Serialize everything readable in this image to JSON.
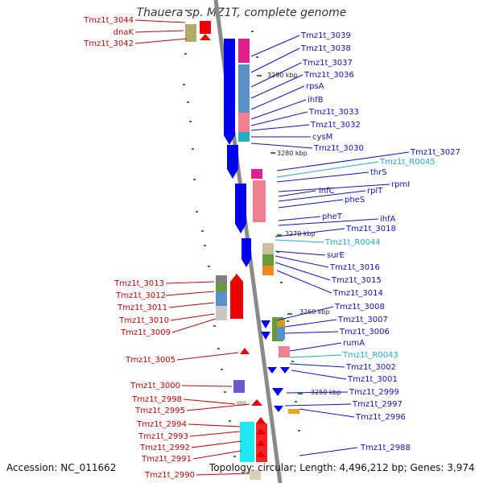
{
  "title": "Thauera sp. MZ1T, complete genome",
  "footer": {
    "accession": "Accession: NC_011662",
    "topology": "Topology: circular; Length: 4,496,212 bp; Genes: 3,974"
  },
  "kbp_marks": [
    "3290 kbp",
    "3280 kbp",
    "3270 kbp",
    "3260 kbp",
    "3250 kbp"
  ],
  "left_labels": [
    "Tmz1t_3044",
    "dnaK",
    "Tmz1t_3042",
    "Tmz1t_3013",
    "Tmz1t_3012",
    "Tmz1t_3011",
    "Tmz1t_3010",
    "Tmz1t_3009",
    "Tmz1t_3005",
    "Tmz1t_3000",
    "Tmz1t_2998",
    "Tmz1t_2995",
    "Tmz1t_2994",
    "Tmz1t_2993",
    "Tmz1t_2992",
    "Tmz1t_2991",
    "Tmz1t_2990"
  ],
  "right_labels": [
    "Tmz1t_3039",
    "Tmz1t_3038",
    "Tmz1t_3037",
    "Tmz1t_3036",
    "rpsA",
    "ihfB",
    "Tmz1t_3033",
    "Tmz1t_3032",
    "cysM",
    "Tmz1t_3030",
    "Tmz1t_3027",
    "Tmz1t_R0045",
    "thrS",
    "rpmI",
    "infC",
    "rplT",
    "pheS",
    "pheT",
    "ihfA",
    "Tmz1t_3018",
    "Tmz1t_R0044",
    "surE",
    "Tmz1t_3016",
    "Tmz1t_3015",
    "Tmz1t_3014",
    "Tmz1t_3008",
    "Tmz1t_3007",
    "Tmz1t_3006",
    "rumA",
    "Tmz1t_R0043",
    "Tmz1t_3002",
    "Tmz1t_3001",
    "Tmz1t_2999",
    "Tmz1t_2997",
    "Tmz1t_2996",
    "Tmz1t_2988"
  ],
  "colors": {
    "left_label": "#cc0000",
    "right_label": "#1010cc",
    "rna_label": "#22aacc",
    "forward_gene": "#ee0000",
    "reverse_gene": "#0000ee",
    "backbone": "#888888",
    "tick": "#228822"
  }
}
